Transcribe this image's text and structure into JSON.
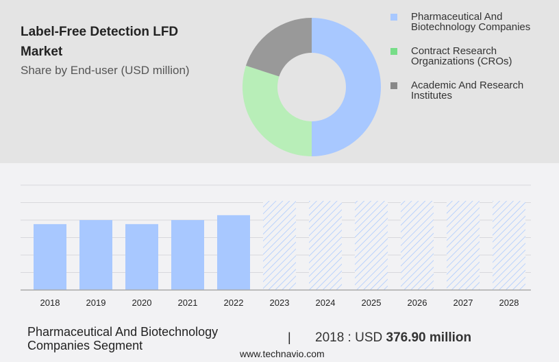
{
  "header": {
    "title": "Label-Free Detection LFD Market",
    "subtitle": "Share by End-user (USD million)"
  },
  "chart_data": [
    {
      "type": "pie",
      "variant": "donut",
      "slices": [
        {
          "label": "Pharmaceutical And Biotechnology Companies",
          "value": 50,
          "color": "#a8c8ff"
        },
        {
          "label": "Contract Research Organizations (CROs)",
          "value": 30,
          "color": "#b8eeb8"
        },
        {
          "label": "Academic And Research Institutes",
          "value": 20,
          "color": "#999999"
        }
      ],
      "legend_colors": [
        "#a8c8ff",
        "#77dd88",
        "#888888"
      ],
      "legend_placement": "right"
    },
    {
      "type": "bar",
      "categories": [
        "2018",
        "2019",
        "2020",
        "2021",
        "2022",
        "2023",
        "2024",
        "2025",
        "2026",
        "2027",
        "2028"
      ],
      "values": [
        376.9,
        400,
        377,
        400,
        428,
        510,
        510,
        510,
        510,
        510,
        510
      ],
      "forecast_from": "2023",
      "color": "#a8c8ff",
      "ylim": [
        0,
        600
      ],
      "grid": true
    }
  ],
  "footer": {
    "segment": "Pharmaceutical And Biotechnology Companies Segment",
    "separator": "|",
    "year_prefix": "2018 : USD ",
    "value": "376.90 million",
    "url": "www.technavio.com"
  }
}
